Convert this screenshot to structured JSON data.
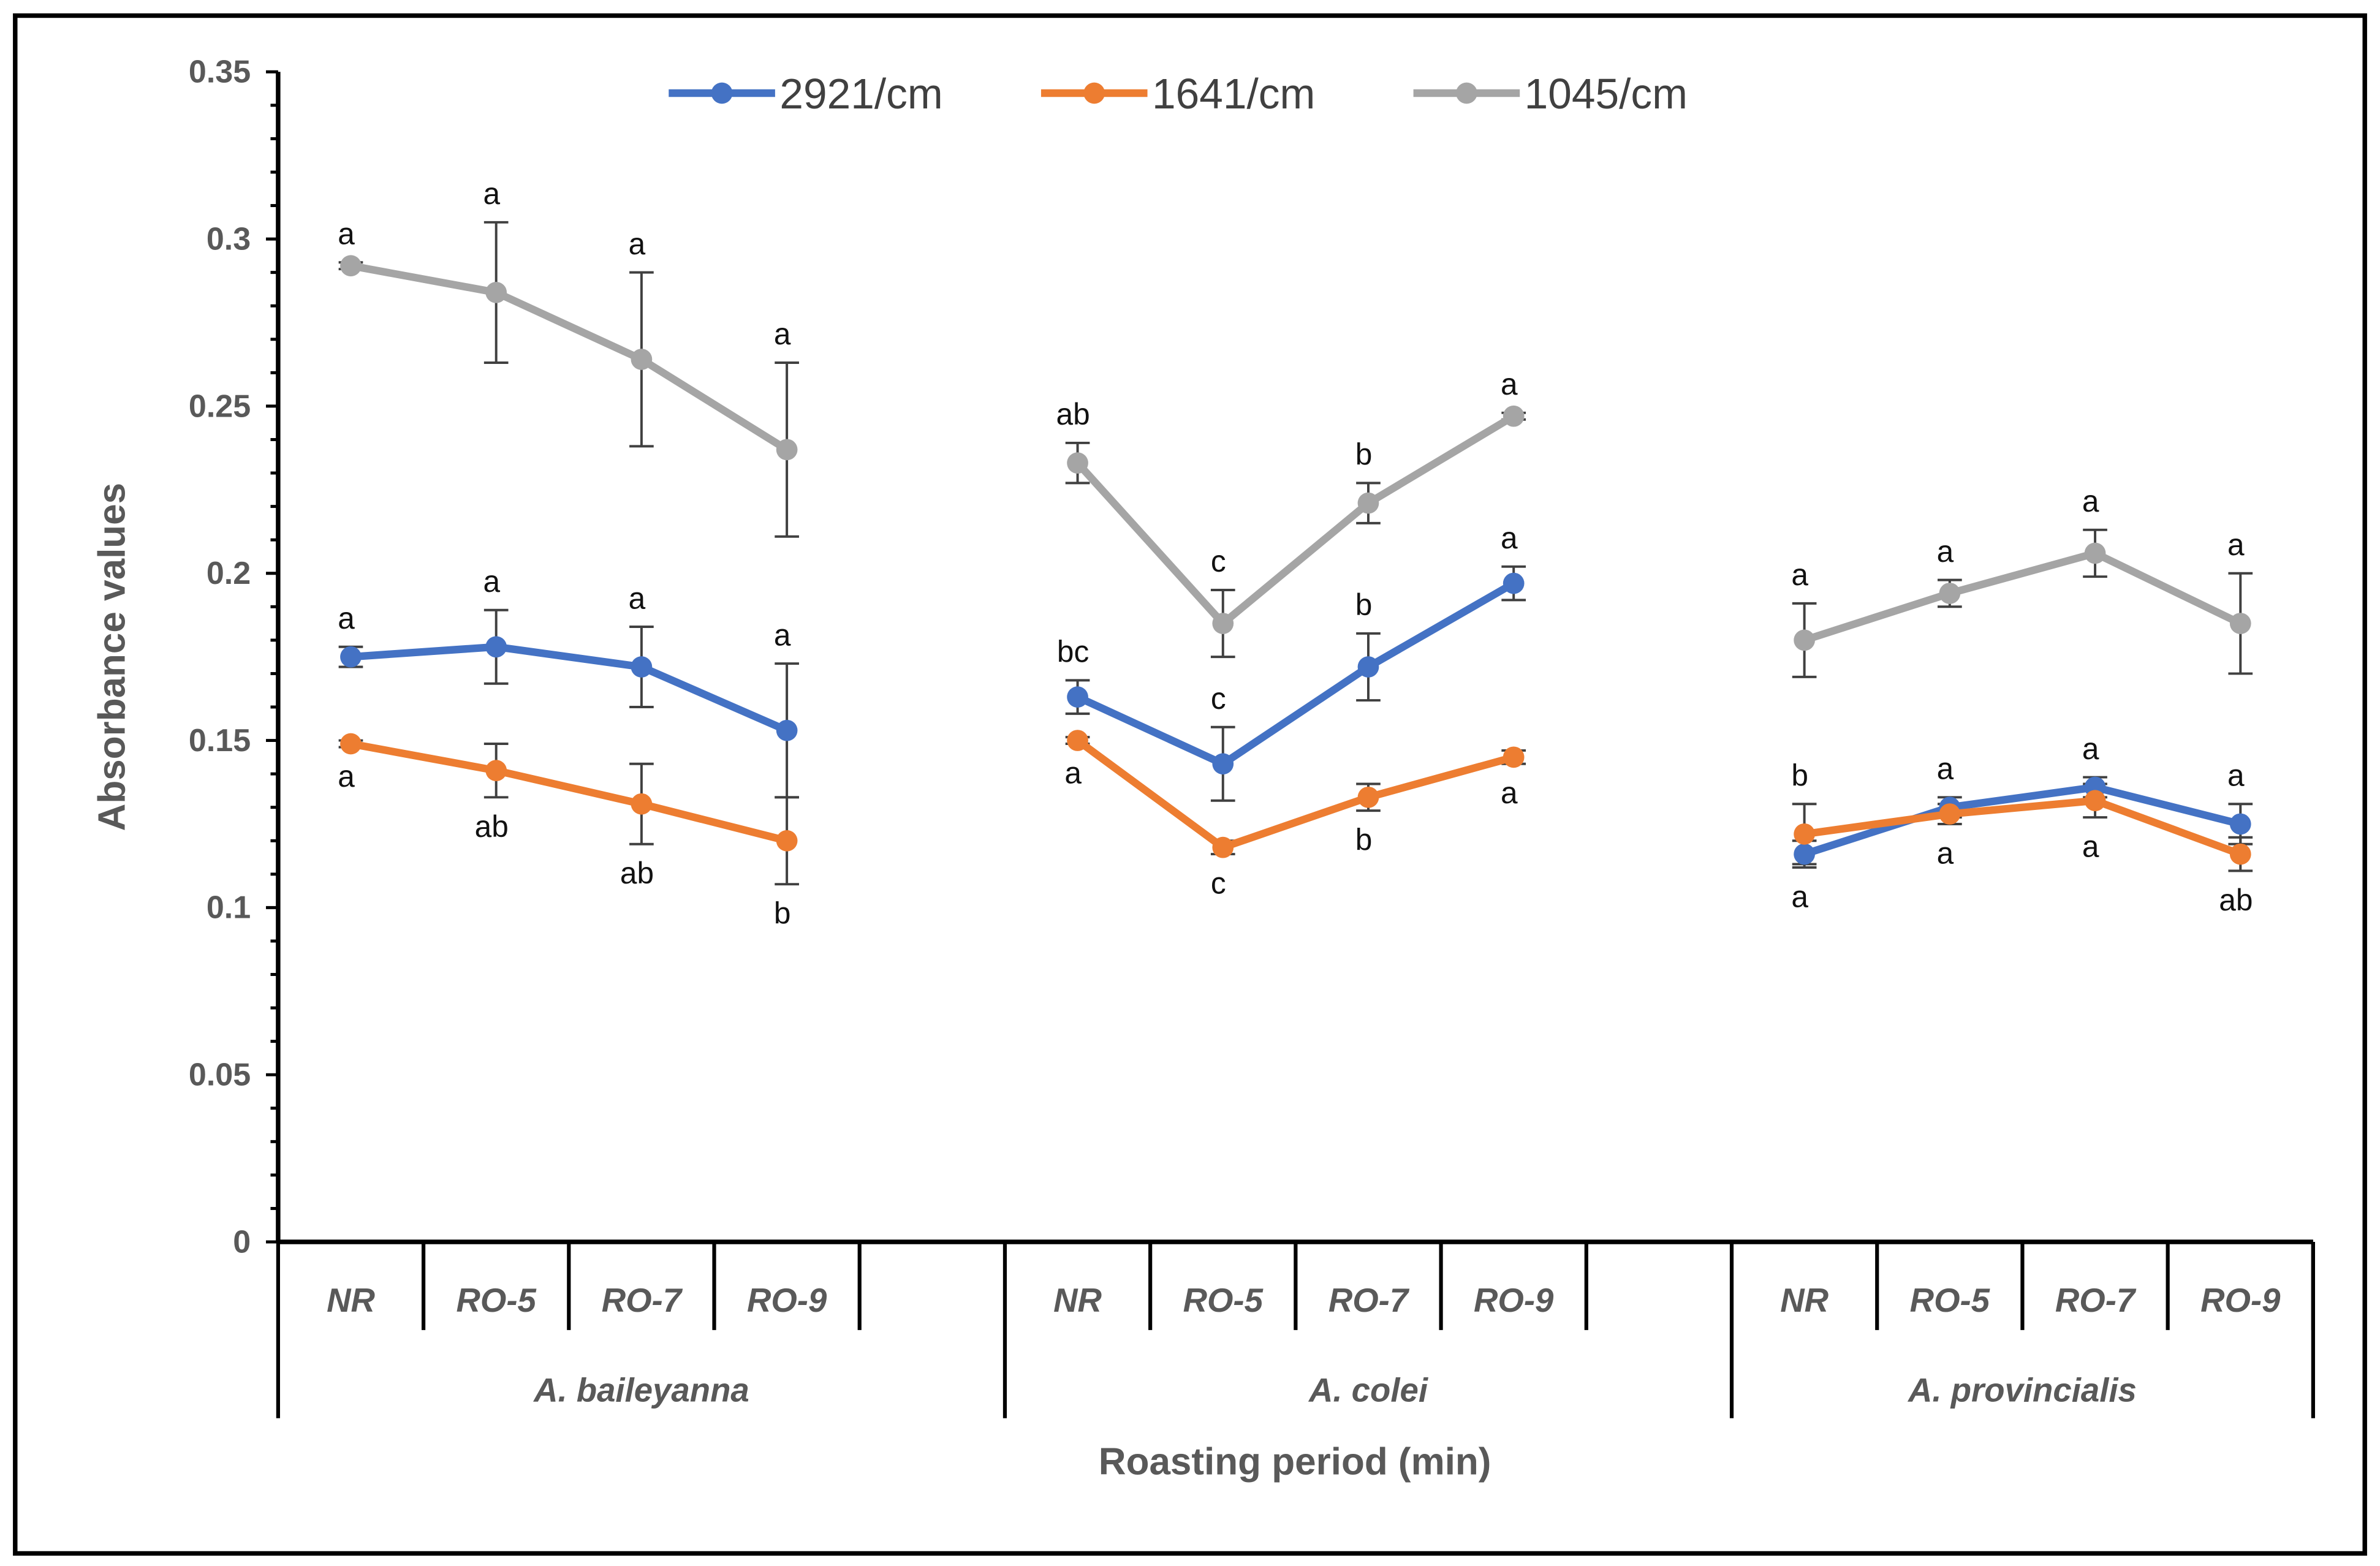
{
  "chart_data": {
    "type": "line",
    "title": "",
    "xlabel": "Roasting period (min)",
    "ylabel": "Absorbance values",
    "ylim": [
      0,
      0.35
    ],
    "yticks": [
      "0",
      "0.05",
      "0.1",
      "0.15",
      "0.2",
      "0.25",
      "0.3",
      "0.35"
    ],
    "minor_tick_step": 0.01,
    "legend_position": "top-center",
    "groups": [
      {
        "name": "A. baileyanna",
        "categories": [
          "NR",
          "RO-5",
          "RO-7",
          "RO-9"
        ]
      },
      {
        "name": "A. colei",
        "categories": [
          "NR",
          "RO-5",
          "RO-7",
          "RO-9"
        ]
      },
      {
        "name": "A. provincialis",
        "categories": [
          "NR",
          "RO-5",
          "RO-7",
          "RO-9"
        ]
      }
    ],
    "series": [
      {
        "name": "2921/cm",
        "color": "#4472C4",
        "values": [
          0.175,
          0.178,
          0.172,
          0.153,
          0.163,
          0.143,
          0.172,
          0.197,
          0.116,
          0.13,
          0.136,
          0.125
        ],
        "errors": [
          0.003,
          0.011,
          0.012,
          0.02,
          0.005,
          0.011,
          0.01,
          0.005,
          0.004,
          0.003,
          0.003,
          0.006
        ],
        "letters": [
          "a",
          "a",
          "a",
          "a",
          "bc",
          "c",
          "b",
          "a",
          "a",
          "a",
          "a",
          "a"
        ],
        "letter_side": [
          "above",
          "above",
          "above",
          "above",
          "above",
          "above",
          "above",
          "above",
          "below",
          "above",
          "above",
          "above"
        ]
      },
      {
        "name": "1641/cm",
        "color": "#ED7D31",
        "values": [
          0.149,
          0.141,
          0.131,
          0.12,
          0.15,
          0.118,
          0.133,
          0.145,
          0.122,
          0.128,
          0.132,
          0.116
        ],
        "errors": [
          0.001,
          0.008,
          0.012,
          0.013,
          0.001,
          0.002,
          0.004,
          0.002,
          0.009,
          0.003,
          0.005,
          0.005
        ],
        "letters": [
          "a",
          "ab",
          "ab",
          "b",
          "a",
          "c",
          "b",
          "a",
          "b",
          "a",
          "a",
          "ab"
        ],
        "letter_side": [
          "below",
          "below",
          "below",
          "below",
          "below",
          "below",
          "below",
          "below",
          "above",
          "below",
          "below",
          "below"
        ]
      },
      {
        "name": "1045/cm",
        "color": "#A5A5A5",
        "values": [
          0.292,
          0.284,
          0.264,
          0.237,
          0.233,
          0.185,
          0.221,
          0.247,
          0.18,
          0.194,
          0.206,
          0.185
        ],
        "errors": [
          0.001,
          0.021,
          0.026,
          0.026,
          0.006,
          0.01,
          0.006,
          0.001,
          0.011,
          0.004,
          0.007,
          0.015
        ],
        "letters": [
          "a",
          "a",
          "a",
          "a",
          "ab",
          "c",
          "b",
          "a",
          "a",
          "a",
          "a",
          "a"
        ],
        "letter_side": [
          "above",
          "above",
          "above",
          "above",
          "above",
          "above",
          "above",
          "above",
          "above",
          "above",
          "above",
          "above"
        ]
      }
    ]
  }
}
